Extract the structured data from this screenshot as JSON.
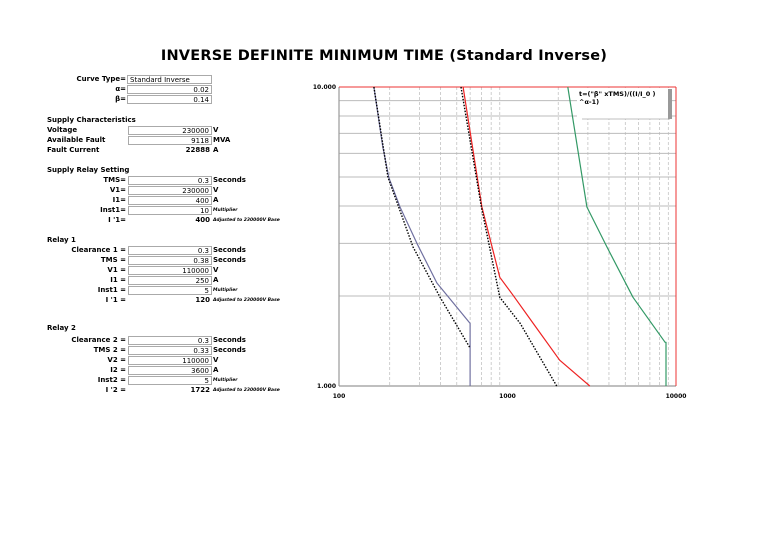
{
  "title": "INVERSE DEFINITE MINIMUM TIME (Standard Inverse)",
  "curve": {
    "curve_type_label": "Curve Type=",
    "curve_type": "Standard Inverse",
    "alpha_label": "α=",
    "alpha": "0.02",
    "beta_label": "β=",
    "beta": "0.14"
  },
  "sections": [
    {
      "heading": "Supply Characteristics",
      "rows": [
        {
          "label": "Voltage",
          "value": "230000",
          "unit": "V",
          "boxed": true,
          "left": true
        },
        {
          "label": "Available Fault",
          "value": "9118",
          "unit": "MVA",
          "boxed": true,
          "left": true
        },
        {
          "label": "Fault Current",
          "value": "22888",
          "unit": "A",
          "boxed": false,
          "left": true
        }
      ]
    },
    {
      "heading": "Supply Relay Setting",
      "rows": [
        {
          "label": "TMS=",
          "value": "0.3",
          "unit": "Seconds",
          "boxed": true
        },
        {
          "label": "V1=",
          "value": "230000",
          "unit": "V",
          "boxed": true
        },
        {
          "label": "I1=",
          "value": "400",
          "unit": "A",
          "boxed": true
        },
        {
          "label": "Inst1=",
          "value": "10",
          "unit": "Multiplier",
          "boxed": true,
          "small": true
        },
        {
          "label": "I '1=",
          "value": "400",
          "unit": "Adjusted to 230000V Base",
          "boxed": false,
          "small": true
        }
      ]
    },
    {
      "heading": "Relay 1",
      "rows": [
        {
          "label": "Clearance 1 =",
          "value": "0.3",
          "unit": "Seconds",
          "boxed": true
        },
        {
          "label": "TMS =",
          "value": "0.38",
          "unit": "Seconds",
          "boxed": true
        },
        {
          "label": "V1 =",
          "value": "110000",
          "unit": "V",
          "boxed": true
        },
        {
          "label": "I1 =",
          "value": "250",
          "unit": "A",
          "boxed": true
        },
        {
          "label": "Inst1 =",
          "value": "5",
          "unit": "Multiplier",
          "boxed": true,
          "small": true
        },
        {
          "label": "I '1 =",
          "value": "120",
          "unit": "Adjusted to 230000V Base",
          "boxed": false,
          "small": true
        }
      ]
    },
    {
      "heading": "Relay 2",
      "rows": [
        {
          "label": "Clearance 2 =",
          "value": "0.3",
          "unit": "Seconds",
          "boxed": true
        },
        {
          "label": "TMS 2 =",
          "value": "0.33",
          "unit": "Seconds",
          "boxed": true
        },
        {
          "label": "V2 =",
          "value": "110000",
          "unit": "V",
          "boxed": true
        },
        {
          "label": "I2 =",
          "value": "3600",
          "unit": "A",
          "boxed": true
        },
        {
          "label": "Inst2 =",
          "value": "5",
          "unit": "Multiplier",
          "boxed": true,
          "small": true
        },
        {
          "label": "I '2 =",
          "value": "1722",
          "unit": "Adjusted to 230000V Base",
          "boxed": false,
          "small": true
        }
      ]
    }
  ],
  "chart_data": {
    "type": "line",
    "x_scale": "log",
    "y_scale": "log",
    "xlim": [
      100,
      10000
    ],
    "ylim": [
      1,
      10
    ],
    "x_ticks": [
      "100",
      "1000",
      "10000"
    ],
    "y_ticks": [
      "1.000",
      "10.000"
    ],
    "grid": true,
    "legend_text": "t=(\"β\" xTMS)/((I/I_0 )^α-1)",
    "legend_placement": "top-right",
    "series": [
      {
        "color": "#7070a0",
        "style": "solid",
        "points": [
          [
            161,
            10
          ],
          [
            182,
            6.3
          ],
          [
            198,
            4.96
          ],
          [
            230,
            3.97
          ],
          [
            290,
            3.0
          ],
          [
            381,
            2.21
          ],
          [
            600,
            1.62
          ],
          [
            600,
            1
          ]
        ]
      },
      {
        "color": "#000000",
        "style": "dotted",
        "points": [
          [
            161,
            10
          ],
          [
            195,
            5.0
          ],
          [
            275,
            2.92
          ],
          [
            398,
            1.98
          ],
          [
            600,
            1.34
          ]
        ]
      },
      {
        "color": "#ee2222",
        "style": "solid",
        "points": [
          [
            545,
            10
          ],
          [
            705,
            3.97
          ],
          [
            900,
            2.31
          ],
          [
            1080,
            2.01
          ],
          [
            1420,
            1.62
          ],
          [
            2040,
            1.22
          ],
          [
            3080,
            1.0
          ]
        ]
      },
      {
        "color": "#000000",
        "style": "dotted",
        "points": [
          [
            530,
            10
          ],
          [
            700,
            3.97
          ],
          [
            900,
            1.98
          ],
          [
            1190,
            1.62
          ],
          [
            1960,
            1.0
          ]
        ]
      },
      {
        "color": "#339966",
        "style": "solid",
        "points": [
          [
            2280,
            10
          ],
          [
            2960,
            3.97
          ],
          [
            3890,
            2.92
          ],
          [
            5560,
            1.98
          ],
          [
            8620,
            1.4
          ],
          [
            8720,
            1.4
          ],
          [
            8720,
            1
          ]
        ]
      }
    ]
  }
}
